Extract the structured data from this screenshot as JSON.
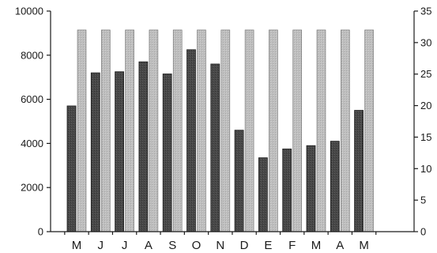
{
  "chart_data": {
    "type": "bar",
    "categories": [
      "M",
      "J",
      "J",
      "A",
      "S",
      "O",
      "N",
      "D",
      "E",
      "F",
      "M",
      "A",
      "M"
    ],
    "series": [
      {
        "axis": "left",
        "color": "#4a4a4a",
        "values": [
          5700,
          7200,
          7250,
          7700,
          7150,
          8250,
          7600,
          4600,
          3350,
          3750,
          3900,
          4100,
          5500
        ]
      },
      {
        "axis": "right",
        "color": "#bdbdbd",
        "values": [
          32,
          32,
          32,
          32,
          32,
          32,
          32,
          32,
          32,
          32,
          32,
          32,
          32
        ]
      }
    ],
    "ylim_left": [
      0,
      10000
    ],
    "yticks_left": [
      "0",
      "2000",
      "4000",
      "6000",
      "8000",
      "10000"
    ],
    "ylim_right": [
      0,
      35
    ],
    "yticks_right": [
      "0",
      "5",
      "10",
      "15",
      "20",
      "25",
      "30",
      "35"
    ],
    "grid": false,
    "xlabel": "",
    "ylabel": ""
  }
}
